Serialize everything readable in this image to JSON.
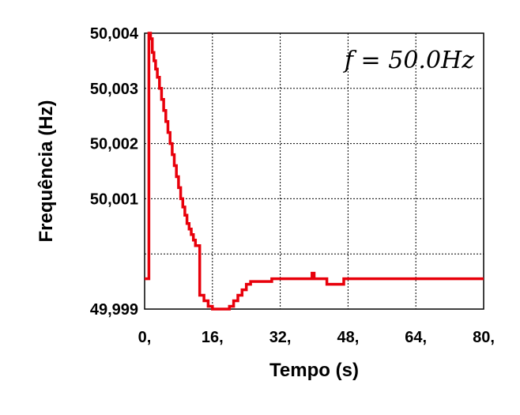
{
  "chart_data": {
    "type": "line",
    "xlabel": "Tempo (s)",
    "ylabel": "Frequência (Hz)",
    "annotation": "f = 50.0Hz",
    "xlim": [
      0,
      80
    ],
    "ylim": [
      49.999,
      50.004
    ],
    "x_ticks": [
      0,
      16,
      32,
      48,
      64,
      80
    ],
    "x_tick_labels": [
      "0,",
      "16,",
      "32,",
      "48,",
      "64,",
      "80,"
    ],
    "y_ticks": [
      49.999,
      50.001,
      50.002,
      50.003,
      50.004
    ],
    "y_tick_labels": [
      "49,999",
      "50,001",
      "50,002",
      "50,003",
      "50,004"
    ],
    "grid": true,
    "series_color": "#e8000b",
    "series": [
      {
        "x": [
          0,
          1.0,
          1.0,
          1.4,
          1.8,
          2.2,
          2.6,
          3.0,
          3.5,
          4.0,
          4.5,
          5.0,
          5.5,
          6.0,
          6.5,
          7.0,
          7.5,
          8.0,
          8.5,
          9.0,
          9.5,
          10.0,
          10.5,
          11.0,
          11.5,
          12.0,
          13.0,
          14.0,
          15.0,
          16.0,
          17.0,
          18.0,
          19.0,
          20.0,
          21.0,
          22.0,
          23.0,
          24.0,
          25.0,
          30.0,
          37.5,
          39.5,
          40.0,
          41.0,
          43.0,
          46.5,
          47.0,
          80.0
        ],
        "y": [
          49.99955,
          49.99955,
          50.004,
          50.0039,
          50.00365,
          50.0035,
          50.00335,
          50.0032,
          50.003,
          50.0028,
          50.0026,
          50.0024,
          50.0022,
          50.002,
          50.0018,
          50.0016,
          50.0014,
          50.0012,
          50.001,
          50.00085,
          50.0007,
          50.00055,
          50.00045,
          50.00035,
          50.00025,
          50.00015,
          49.99925,
          49.99915,
          49.99905,
          49.999,
          49.999,
          49.999,
          49.999,
          49.99905,
          49.99915,
          49.99925,
          49.99935,
          49.99945,
          49.9995,
          49.99955,
          49.99955,
          49.99965,
          49.99955,
          49.99955,
          49.99945,
          49.99945,
          49.99955,
          49.99955
        ]
      }
    ]
  }
}
